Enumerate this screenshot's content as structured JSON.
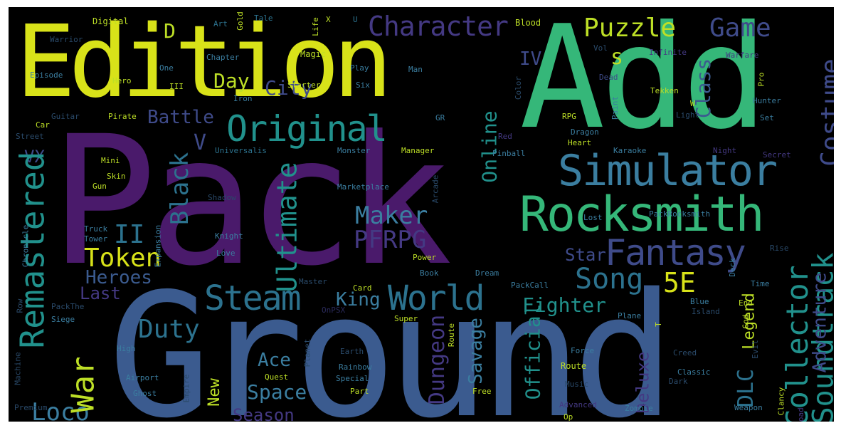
{
  "colors": {
    "background": "#000000",
    "yellow": "#d8e219",
    "green": "#35b779",
    "teal": "#21918c",
    "blue": "#3b5b8f",
    "purple": "#4a1a6b",
    "dim": "#2a2a3a"
  },
  "words": [
    {
      "text": "Pack"
    },
    {
      "text": "Ground"
    },
    {
      "text": "Add"
    },
    {
      "text": "Edition"
    },
    {
      "text": "Rocksmith"
    },
    {
      "text": "Simulator"
    },
    {
      "text": "Original"
    },
    {
      "text": "Fantasy"
    },
    {
      "text": "Steam"
    },
    {
      "text": "World"
    },
    {
      "text": "Remastered"
    },
    {
      "text": "Character"
    },
    {
      "text": "Soundtrack"
    },
    {
      "text": "Collector"
    },
    {
      "text": "Song"
    },
    {
      "text": "Costume"
    },
    {
      "text": "Ultimate"
    },
    {
      "text": "Token"
    },
    {
      "text": "PFRPG"
    },
    {
      "text": "Maker"
    },
    {
      "text": "Puzzle"
    },
    {
      "text": "Game"
    },
    {
      "text": "Loco"
    },
    {
      "text": "War"
    },
    {
      "text": "Duty"
    },
    {
      "text": "Black"
    },
    {
      "text": "5E"
    },
    {
      "text": "City"
    },
    {
      "text": "Battle"
    },
    {
      "text": "Heroes"
    },
    {
      "text": "II"
    },
    {
      "text": "Day"
    },
    {
      "text": "Online"
    },
    {
      "text": "DLC"
    },
    {
      "text": "Fighter"
    },
    {
      "text": "Dungeon"
    },
    {
      "text": "Space"
    },
    {
      "text": "Season"
    },
    {
      "text": "King"
    },
    {
      "text": "Ace"
    },
    {
      "text": "New"
    },
    {
      "text": "Last"
    },
    {
      "text": "Star"
    },
    {
      "text": "Legend"
    },
    {
      "text": "Adventure"
    },
    {
      "text": "Savage"
    },
    {
      "text": "Official"
    },
    {
      "text": "Deluxe"
    },
    {
      "text": "Class"
    },
    {
      "text": "IV"
    },
    {
      "text": "V"
    },
    {
      "text": "VX"
    },
    {
      "text": "D"
    },
    {
      "text": "s"
    },
    {
      "text": "Digital"
    },
    {
      "text": "Warrior"
    },
    {
      "text": "Art"
    },
    {
      "text": "Gold"
    },
    {
      "text": "Tale"
    },
    {
      "text": "Life"
    },
    {
      "text": "X"
    },
    {
      "text": "U"
    },
    {
      "text": "Blood"
    },
    {
      "text": "Infinite"
    },
    {
      "text": "Warfare"
    },
    {
      "text": "Magic"
    },
    {
      "text": "Episode"
    },
    {
      "text": "One"
    },
    {
      "text": "Chapter"
    },
    {
      "text": "Play"
    },
    {
      "text": "Hero"
    },
    {
      "text": "III"
    },
    {
      "text": "Man"
    },
    {
      "text": "Vol"
    },
    {
      "text": "Color"
    },
    {
      "text": "Dead"
    },
    {
      "text": "Pro"
    },
    {
      "text": "Iron"
    },
    {
      "text": "Starter"
    },
    {
      "text": "Six"
    },
    {
      "text": "Tekken"
    },
    {
      "text": "Paint"
    },
    {
      "text": "Hunter"
    },
    {
      "text": "Guitar"
    },
    {
      "text": "Pirate"
    },
    {
      "text": "RPG"
    },
    {
      "text": "Light"
    },
    {
      "text": "Set"
    },
    {
      "text": "Car"
    },
    {
      "text": "Street"
    },
    {
      "text": "Dragon"
    },
    {
      "text": "Heart"
    },
    {
      "text": "Red"
    },
    {
      "text": "Monster"
    },
    {
      "text": "Manager"
    },
    {
      "text": "Pinball"
    },
    {
      "text": "Universalis"
    },
    {
      "text": "Karaoke"
    },
    {
      "text": "Night"
    },
    {
      "text": "Secret"
    },
    {
      "text": "Mini"
    },
    {
      "text": "Skin"
    },
    {
      "text": "Gun"
    },
    {
      "text": "Marketplace"
    },
    {
      "text": "Arcade"
    },
    {
      "text": "Shadow"
    },
    {
      "text": "Lost"
    },
    {
      "text": "PackRocksmith"
    },
    {
      "text": "Truck"
    },
    {
      "text": "Tower"
    },
    {
      "text": "Knight"
    },
    {
      "text": "Chronicle"
    },
    {
      "text": "Love"
    },
    {
      "text": "Expansion"
    },
    {
      "text": "Power"
    },
    {
      "text": "Rise"
    },
    {
      "text": "Master"
    },
    {
      "text": "Book"
    },
    {
      "text": "Dream"
    },
    {
      "text": "Deck"
    },
    {
      "text": "Card"
    },
    {
      "text": "PackCall"
    },
    {
      "text": "Time"
    },
    {
      "text": "Row"
    },
    {
      "text": "PackThe"
    },
    {
      "text": "OnPSX"
    },
    {
      "text": "Blue"
    },
    {
      "text": "End"
    },
    {
      "text": "God"
    },
    {
      "text": "Siege"
    },
    {
      "text": "Super"
    },
    {
      "text": "Plane"
    },
    {
      "text": "Island"
    },
    {
      "text": "Evil"
    },
    {
      "text": "High"
    },
    {
      "text": "Earth"
    },
    {
      "text": "Force"
    },
    {
      "text": "Creed"
    },
    {
      "text": "Machine"
    },
    {
      "text": "Planet"
    },
    {
      "text": "Rainbow"
    },
    {
      "text": "Route"
    },
    {
      "text": "Airport"
    },
    {
      "text": "Quest"
    },
    {
      "text": "Special"
    },
    {
      "text": "Classic"
    },
    {
      "text": "Ghost"
    },
    {
      "text": "Part"
    },
    {
      "text": "Free"
    },
    {
      "text": "Music"
    },
    {
      "text": "Dark"
    },
    {
      "text": "Empire"
    },
    {
      "text": "Advanced"
    },
    {
      "text": "Weapon"
    },
    {
      "text": "Clancy"
    },
    {
      "text": "Premium"
    },
    {
      "text": "Op"
    },
    {
      "text": "Zombie"
    },
    {
      "text": "Road"
    },
    {
      "text": "GR"
    },
    {
      "text": "T"
    },
    {
      "text": "W"
    },
    {
      "text": "&"
    }
  ]
}
